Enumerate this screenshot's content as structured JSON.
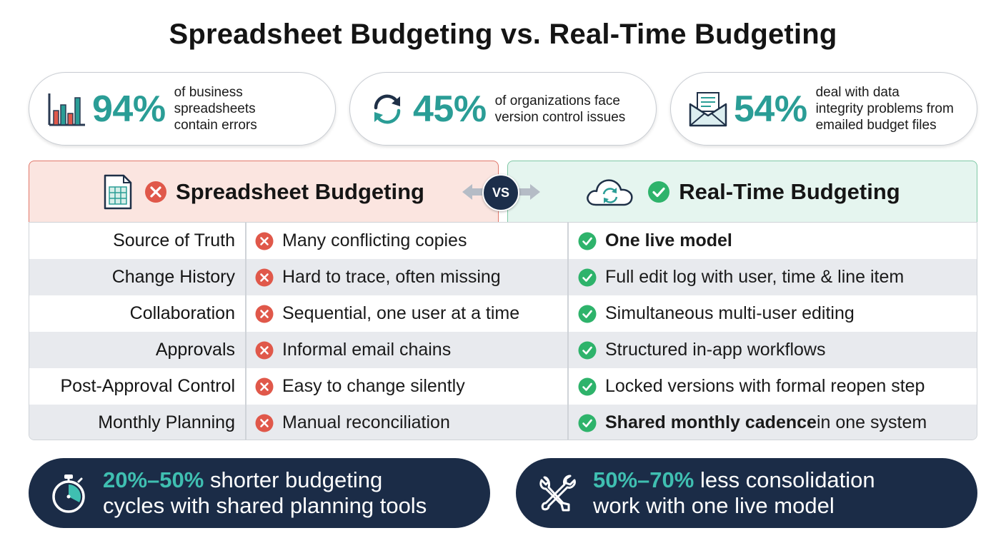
{
  "title": "Spreadsheet Budgeting vs. Real-Time Budgeting",
  "stats": [
    {
      "icon": "bar-chart-icon",
      "value": "94%",
      "text": "of business spreadsheets contain errors",
      "lines": [
        "of business",
        "spreadsheets",
        "contain errors"
      ]
    },
    {
      "icon": "sync-icon",
      "value": "45%",
      "text": "of organizations face version control issues",
      "lines": [
        "of organizations face",
        "version control issues"
      ]
    },
    {
      "icon": "email-icon",
      "value": "54%",
      "text": "deal with data integrity problems from emailed budget files",
      "lines": [
        "deal with data",
        "integrity problems from",
        "emailed budget files"
      ]
    }
  ],
  "columns": {
    "left": {
      "title": "Spreadsheet Budgeting",
      "icon": "spreadsheet-icon",
      "mark": "x-circle-icon"
    },
    "vs": "VS",
    "right": {
      "title": "Real-Time Budgeting",
      "icon": "cloud-sync-icon",
      "mark": "check-circle-icon"
    }
  },
  "rows": [
    {
      "label": "Source of Truth",
      "bad": "Many conflicting copies",
      "good_bold": "One live model",
      "good": ""
    },
    {
      "label": "Change History",
      "bad": "Hard to trace, often missing",
      "good_bold": "",
      "good": "Full edit log with user, time & line item"
    },
    {
      "label": "Collaboration",
      "bad": "Sequential, one user at a time",
      "good_bold": "",
      "good": "Simultaneous multi-user editing"
    },
    {
      "label": "Approvals",
      "bad": "Informal email chains",
      "good_bold": "",
      "good": "Structured in-app workflows"
    },
    {
      "label": "Post-Approval Control",
      "bad": "Easy to change silently",
      "good_bold": "",
      "good": "Locked versions with formal reopen step"
    },
    {
      "label": "Monthly Planning",
      "bad": "Manual reconciliation",
      "good_bold": "Shared monthly cadence",
      "good": " in one system"
    }
  ],
  "banners": [
    {
      "icon": "stopwatch-icon",
      "highlight": "20%–50%",
      "line1": " shorter budgeting",
      "line2": "cycles with shared planning tools"
    },
    {
      "icon": "tools-icon",
      "highlight": "50%–70%",
      "line1": " less consolidation",
      "line2": "work with one live model"
    }
  ],
  "colors": {
    "accent": "#2a9d96",
    "bad": "#e0584a",
    "good": "#2eb36b",
    "navy": "#1b2c47",
    "left_header": "#fbe5e0",
    "right_header": "#e5f5ef"
  }
}
